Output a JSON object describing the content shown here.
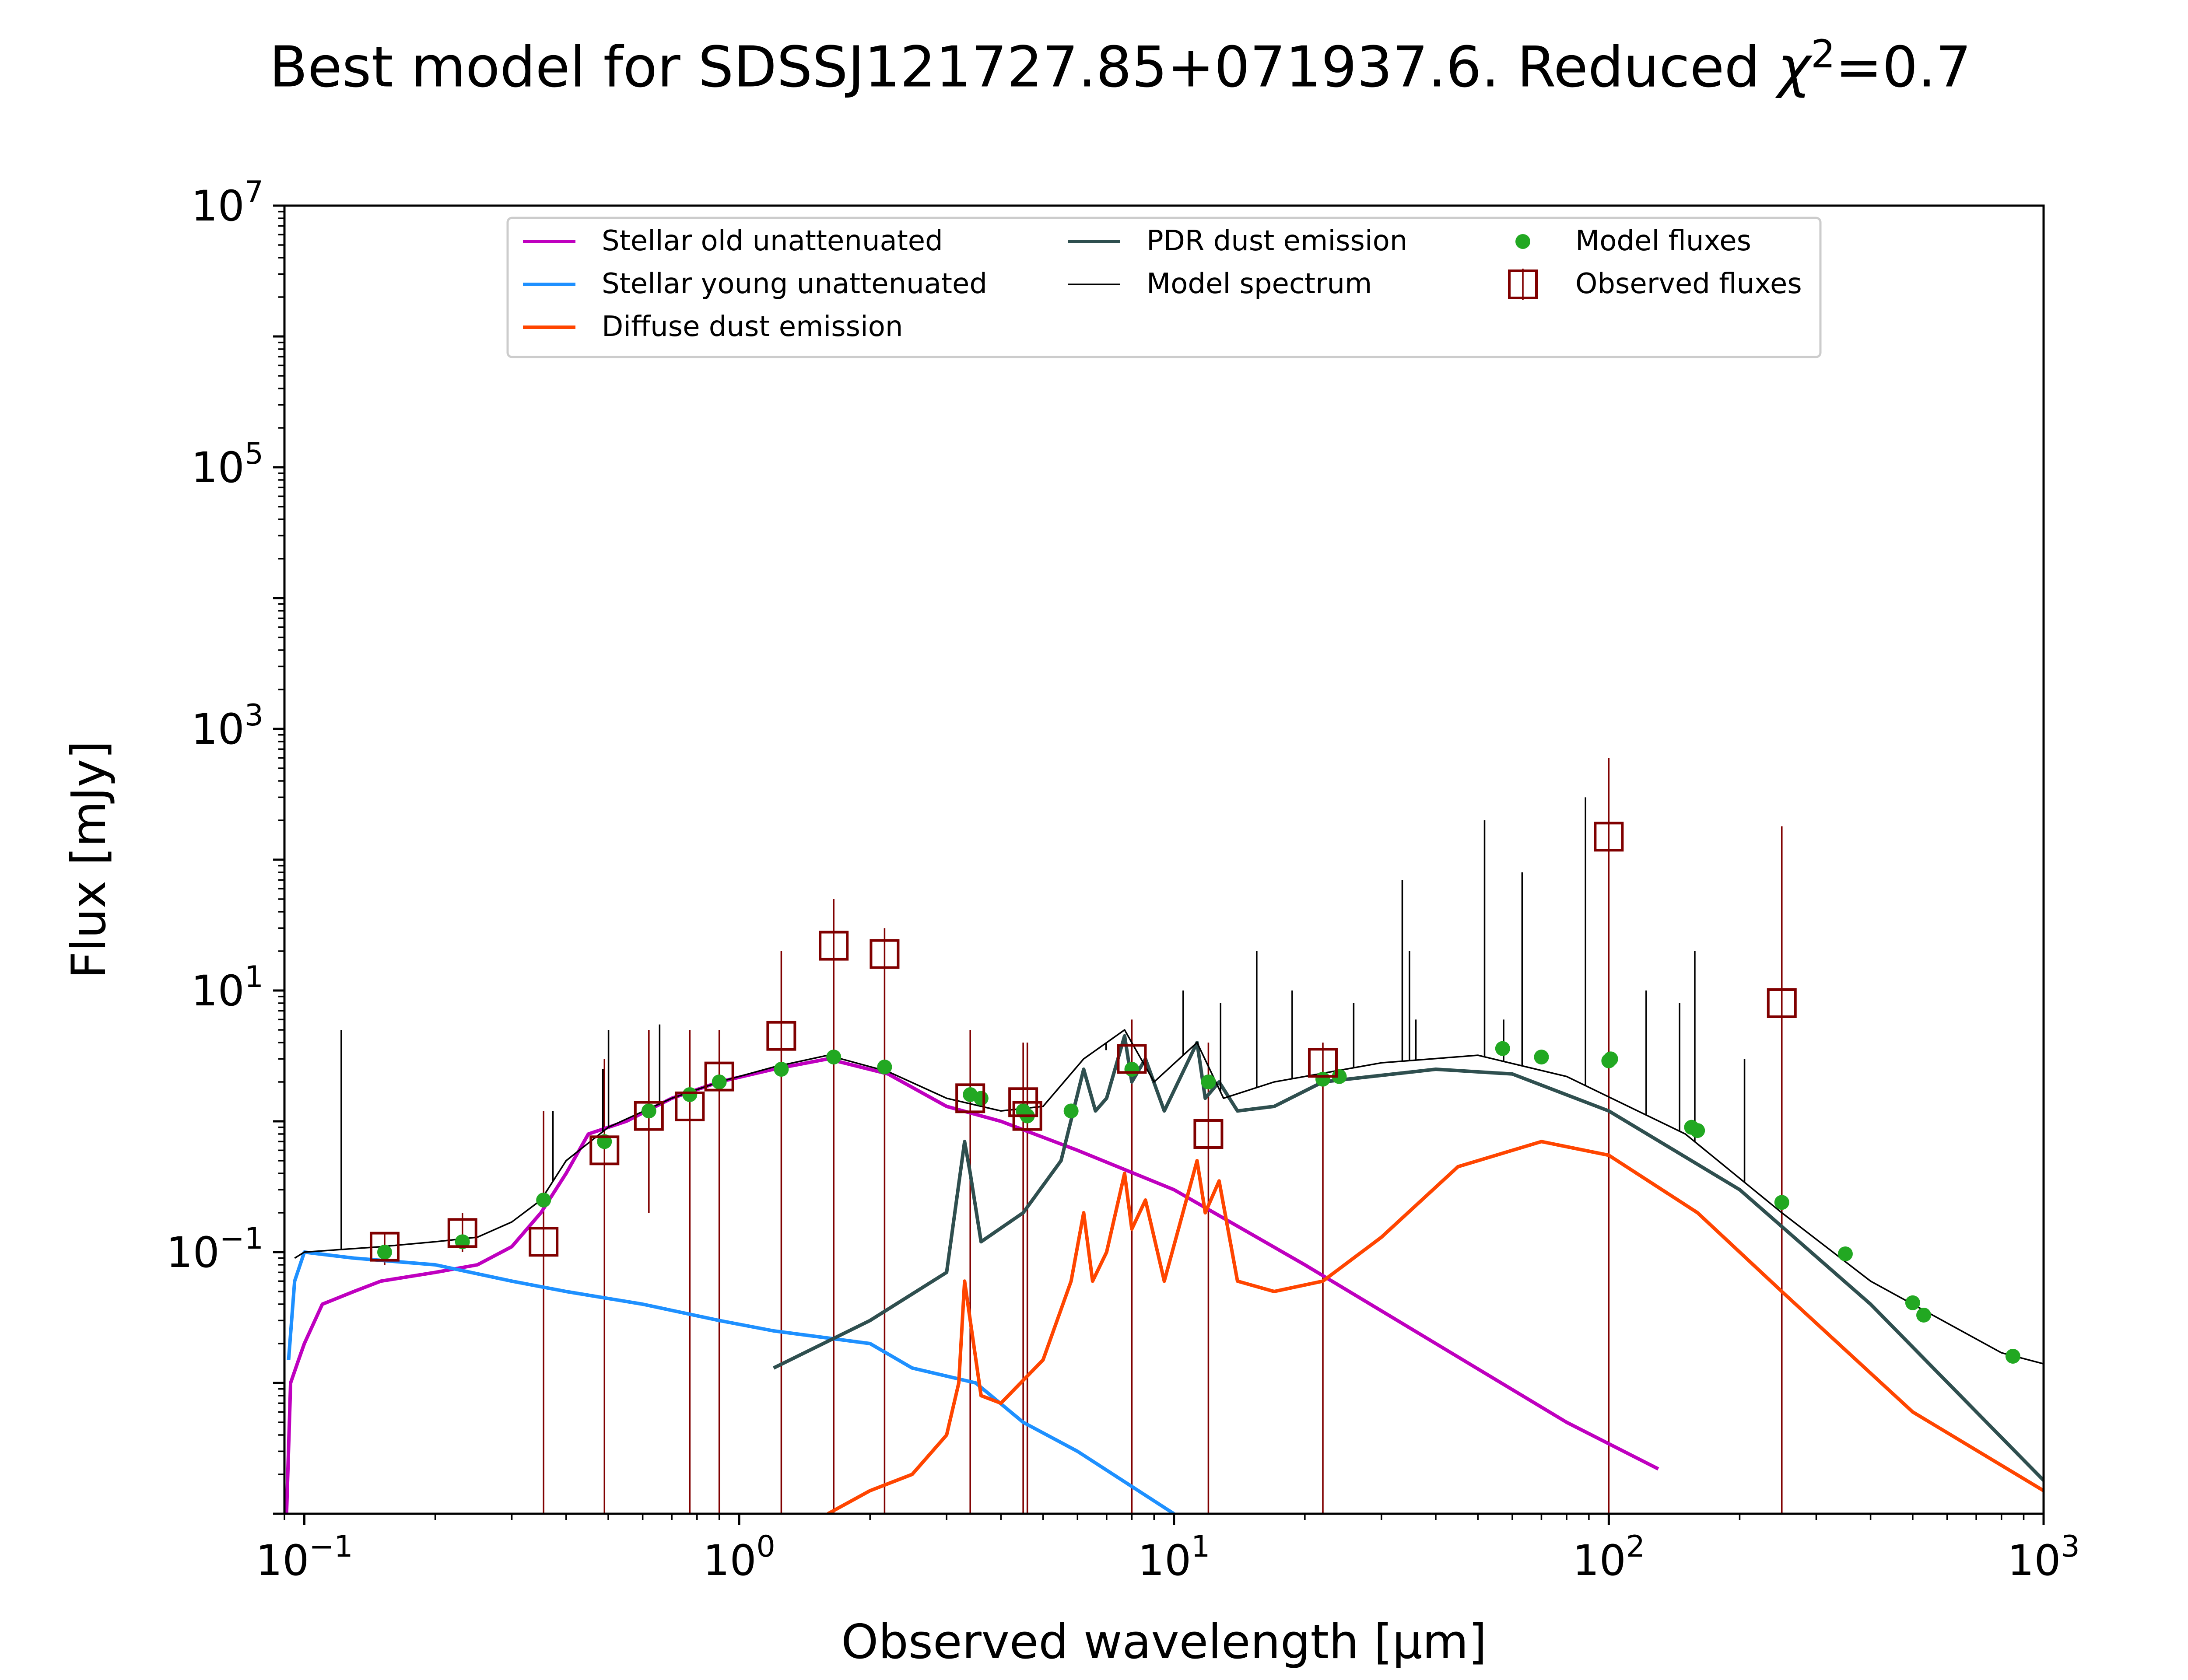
{
  "figure": {
    "title": "Best model for SDSSJ121727.85+071937.6. Reduced χ²=0.7",
    "title_main": "Best model for SDSSJ121727.85+071937.6. Reduced ",
    "title_chi": "χ",
    "title_sup": "2",
    "title_end": "=0.7"
  },
  "chart_data": {
    "type": "line",
    "xlabel": "Observed wavelength [μm]",
    "ylabel": "Flux [mJy]",
    "xscale": "log",
    "yscale": "log",
    "xlim": [
      0.09,
      1000
    ],
    "ylim": [
      0.001,
      10000000
    ],
    "x_ticks": [
      {
        "value": 0.1,
        "base": "10",
        "exp": "−1"
      },
      {
        "value": 1,
        "base": "10",
        "exp": "0"
      },
      {
        "value": 10,
        "base": "10",
        "exp": "1"
      },
      {
        "value": 100,
        "base": "10",
        "exp": "2"
      },
      {
        "value": 1000,
        "base": "10",
        "exp": "3"
      }
    ],
    "y_ticks": [
      {
        "value": 0.1,
        "base": "10",
        "exp": "−1"
      },
      {
        "value": 10,
        "base": "10",
        "exp": "1"
      },
      {
        "value": 1000,
        "base": "10",
        "exp": "3"
      },
      {
        "value": 100000,
        "base": "10",
        "exp": "5"
      },
      {
        "value": 10000000,
        "base": "10",
        "exp": "7"
      }
    ],
    "grid": false,
    "legend_placement": "top-center",
    "legend": [
      {
        "label": "Stellar old unattenuated",
        "marker": "line",
        "color": "#bf00bf"
      },
      {
        "label": "Stellar young unattenuated",
        "marker": "line",
        "color": "#1e90ff"
      },
      {
        "label": "Diffuse dust emission",
        "marker": "line",
        "color": "#ff4500"
      },
      {
        "label": "PDR dust emission",
        "marker": "line",
        "color": "#2f4f4f"
      },
      {
        "label": "Model spectrum",
        "marker": "thinline",
        "color": "#000000"
      },
      {
        "label": "Model fluxes",
        "marker": "dot",
        "color": "#22a822"
      },
      {
        "label": "Observed fluxes",
        "marker": "square",
        "color": "#800000"
      }
    ],
    "series": [
      {
        "name": "Stellar old unattenuated",
        "color": "#bf00bf",
        "points": [
          [
            0.091,
            0.001
          ],
          [
            0.093,
            0.01
          ],
          [
            0.097,
            0.015
          ],
          [
            0.1,
            0.02
          ],
          [
            0.11,
            0.04
          ],
          [
            0.13,
            0.05
          ],
          [
            0.15,
            0.06
          ],
          [
            0.2,
            0.07
          ],
          [
            0.25,
            0.08
          ],
          [
            0.3,
            0.11
          ],
          [
            0.35,
            0.2
          ],
          [
            0.4,
            0.4
          ],
          [
            0.45,
            0.8
          ],
          [
            0.55,
            1.0
          ],
          [
            0.7,
            1.5
          ],
          [
            0.9,
            2.0
          ],
          [
            1.2,
            2.5
          ],
          [
            1.6,
            3.0
          ],
          [
            2.2,
            2.3
          ],
          [
            3.0,
            1.3
          ],
          [
            4.0,
            1.0
          ],
          [
            6.0,
            0.6
          ],
          [
            10,
            0.3
          ],
          [
            20,
            0.08
          ],
          [
            40,
            0.02
          ],
          [
            80,
            0.005
          ],
          [
            130,
            0.0022
          ]
        ]
      },
      {
        "name": "Stellar young unattenuated",
        "color": "#1e90ff",
        "points": [
          [
            0.092,
            0.015
          ],
          [
            0.095,
            0.06
          ],
          [
            0.1,
            0.1
          ],
          [
            0.13,
            0.09
          ],
          [
            0.2,
            0.08
          ],
          [
            0.3,
            0.06
          ],
          [
            0.4,
            0.05
          ],
          [
            0.6,
            0.04
          ],
          [
            0.9,
            0.03
          ],
          [
            1.2,
            0.025
          ],
          [
            2.0,
            0.02
          ],
          [
            2.5,
            0.013
          ],
          [
            3.5,
            0.01
          ],
          [
            4.5,
            0.005
          ],
          [
            6.0,
            0.003
          ],
          [
            10,
            0.001
          ]
        ]
      },
      {
        "name": "Diffuse dust emission",
        "color": "#ff4500",
        "points": [
          [
            1.6,
            0.001
          ],
          [
            2.0,
            0.0015
          ],
          [
            2.5,
            0.002
          ],
          [
            3.0,
            0.004
          ],
          [
            3.2,
            0.01
          ],
          [
            3.3,
            0.06
          ],
          [
            3.4,
            0.03
          ],
          [
            3.6,
            0.008
          ],
          [
            4.0,
            0.007
          ],
          [
            5.0,
            0.015
          ],
          [
            5.8,
            0.06
          ],
          [
            6.2,
            0.2
          ],
          [
            6.5,
            0.06
          ],
          [
            7.0,
            0.1
          ],
          [
            7.7,
            0.4
          ],
          [
            8.0,
            0.15
          ],
          [
            8.6,
            0.25
          ],
          [
            9.5,
            0.06
          ],
          [
            11.3,
            0.5
          ],
          [
            11.8,
            0.2
          ],
          [
            12.7,
            0.35
          ],
          [
            14,
            0.06
          ],
          [
            17,
            0.05
          ],
          [
            22,
            0.06
          ],
          [
            30,
            0.13
          ],
          [
            45,
            0.45
          ],
          [
            70,
            0.7
          ],
          [
            100,
            0.55
          ],
          [
            160,
            0.2
          ],
          [
            250,
            0.05
          ],
          [
            500,
            0.006
          ],
          [
            1000,
            0.0015
          ]
        ]
      },
      {
        "name": "PDR dust emission",
        "color": "#2f4f4f",
        "points": [
          [
            1.2,
            0.013
          ],
          [
            2.0,
            0.03
          ],
          [
            3.0,
            0.07
          ],
          [
            3.3,
            0.7
          ],
          [
            3.4,
            0.4
          ],
          [
            3.6,
            0.12
          ],
          [
            4.5,
            0.2
          ],
          [
            5.5,
            0.5
          ],
          [
            6.2,
            2.5
          ],
          [
            6.6,
            1.2
          ],
          [
            7.0,
            1.5
          ],
          [
            7.7,
            4.5
          ],
          [
            8.0,
            2.0
          ],
          [
            8.6,
            3.0
          ],
          [
            9.5,
            1.2
          ],
          [
            11.3,
            4.0
          ],
          [
            11.8,
            1.5
          ],
          [
            12.7,
            2.0
          ],
          [
            14,
            1.2
          ],
          [
            17,
            1.3
          ],
          [
            22,
            2.0
          ],
          [
            40,
            2.5
          ],
          [
            60,
            2.3
          ],
          [
            100,
            1.2
          ],
          [
            200,
            0.3
          ],
          [
            400,
            0.04
          ],
          [
            1000,
            0.0018
          ]
        ]
      },
      {
        "name": "Model spectrum",
        "color": "#000000",
        "points": [
          [
            0.095,
            0.09
          ],
          [
            0.1,
            0.1
          ],
          [
            0.15,
            0.11
          ],
          [
            0.2,
            0.12
          ],
          [
            0.25,
            0.13
          ],
          [
            0.3,
            0.17
          ],
          [
            0.35,
            0.25
          ],
          [
            0.4,
            0.5
          ],
          [
            0.5,
            0.9
          ],
          [
            0.7,
            1.5
          ],
          [
            0.9,
            2.0
          ],
          [
            1.2,
            2.6
          ],
          [
            1.6,
            3.2
          ],
          [
            2.2,
            2.4
          ],
          [
            3.0,
            1.5
          ],
          [
            4.0,
            1.2
          ],
          [
            5.0,
            1.3
          ],
          [
            6.2,
            3.0
          ],
          [
            7.7,
            5.0
          ],
          [
            9.0,
            2.0
          ],
          [
            11.3,
            4.0
          ],
          [
            13,
            1.5
          ],
          [
            17,
            2.0
          ],
          [
            30,
            2.8
          ],
          [
            50,
            3.2
          ],
          [
            80,
            2.2
          ],
          [
            150,
            0.8
          ],
          [
            250,
            0.2
          ],
          [
            400,
            0.06
          ],
          [
            800,
            0.017
          ],
          [
            1000,
            0.014
          ]
        ]
      }
    ],
    "spectral_lines": [
      {
        "x": 0.1216,
        "y": 5.0
      },
      {
        "x": 0.373,
        "y": 1.2
      },
      {
        "x": 0.486,
        "y": 2.5
      },
      {
        "x": 0.5007,
        "y": 5.0
      },
      {
        "x": 0.6563,
        "y": 5.5
      },
      {
        "x": 6.98,
        "y": 3.5
      },
      {
        "x": 10.5,
        "y": 10
      },
      {
        "x": 12.8,
        "y": 8
      },
      {
        "x": 15.5,
        "y": 20
      },
      {
        "x": 18.7,
        "y": 10
      },
      {
        "x": 25.9,
        "y": 8
      },
      {
        "x": 33.5,
        "y": 70
      },
      {
        "x": 34.8,
        "y": 20
      },
      {
        "x": 36.0,
        "y": 6
      },
      {
        "x": 51.8,
        "y": 200
      },
      {
        "x": 57.3,
        "y": 6
      },
      {
        "x": 63.2,
        "y": 80
      },
      {
        "x": 88.4,
        "y": 300
      },
      {
        "x": 121.9,
        "y": 10
      },
      {
        "x": 145.5,
        "y": 8
      },
      {
        "x": 157.7,
        "y": 20
      },
      {
        "x": 205.2,
        "y": 3
      }
    ],
    "model_fluxes": [
      [
        0.153,
        0.1
      ],
      [
        0.231,
        0.12
      ],
      [
        0.355,
        0.25
      ],
      [
        0.49,
        0.7
      ],
      [
        0.62,
        1.2
      ],
      [
        0.77,
        1.6
      ],
      [
        0.9,
        2.0
      ],
      [
        1.25,
        2.5
      ],
      [
        1.65,
        3.1
      ],
      [
        2.16,
        2.6
      ],
      [
        3.4,
        1.6
      ],
      [
        3.6,
        1.5
      ],
      [
        4.5,
        1.2
      ],
      [
        4.6,
        1.1
      ],
      [
        5.8,
        1.2
      ],
      [
        8.0,
        2.5
      ],
      [
        12.0,
        2.0
      ],
      [
        22.0,
        2.1
      ],
      [
        24.0,
        2.2
      ],
      [
        57,
        3.6
      ],
      [
        70,
        3.1
      ],
      [
        100,
        2.9
      ],
      [
        101,
        3.0
      ],
      [
        155,
        0.9
      ],
      [
        160,
        0.85
      ],
      [
        250,
        0.24
      ],
      [
        350,
        0.097
      ],
      [
        500,
        0.041
      ],
      [
        530,
        0.033
      ],
      [
        850,
        0.016
      ]
    ],
    "observed_fluxes": [
      {
        "x": 0.153,
        "y": 0.11,
        "err_low": 0.08,
        "err_high": 0.14
      },
      {
        "x": 0.231,
        "y": 0.14,
        "err_low": 0.1,
        "err_high": 0.2
      },
      {
        "x": 0.355,
        "y": 0.12,
        "err_low": 0.001,
        "err_high": 1.2
      },
      {
        "x": 0.49,
        "y": 0.6,
        "err_low": 0.001,
        "err_high": 3.0
      },
      {
        "x": 0.62,
        "y": 1.1,
        "err_low": 0.2,
        "err_high": 5.0
      },
      {
        "x": 0.77,
        "y": 1.3,
        "err_low": 0.001,
        "err_high": 5.0
      },
      {
        "x": 0.9,
        "y": 2.2,
        "err_low": 0.001,
        "err_high": 5.0
      },
      {
        "x": 1.25,
        "y": 4.5,
        "err_low": 0.001,
        "err_high": 20
      },
      {
        "x": 1.65,
        "y": 22,
        "err_low": 0.001,
        "err_high": 50
      },
      {
        "x": 2.16,
        "y": 19,
        "err_low": 0.001,
        "err_high": 30
      },
      {
        "x": 3.4,
        "y": 1.5,
        "err_low": 0.001,
        "err_high": 5.0
      },
      {
        "x": 4.5,
        "y": 1.4,
        "err_low": 0.001,
        "err_high": 4.0
      },
      {
        "x": 4.6,
        "y": 1.1,
        "err_low": 0.001,
        "err_high": 4.0
      },
      {
        "x": 8.0,
        "y": 3.0,
        "err_low": 0.001,
        "err_high": 6.0
      },
      {
        "x": 12.0,
        "y": 0.8,
        "err_low": 0.001,
        "err_high": 4.0
      },
      {
        "x": 22.0,
        "y": 2.8,
        "err_low": 0.001,
        "err_high": 4.0
      },
      {
        "x": 100,
        "y": 150,
        "err_low": 0.001,
        "err_high": 600
      },
      {
        "x": 250,
        "y": 8.0,
        "err_low": 0.001,
        "err_high": 180
      }
    ]
  }
}
